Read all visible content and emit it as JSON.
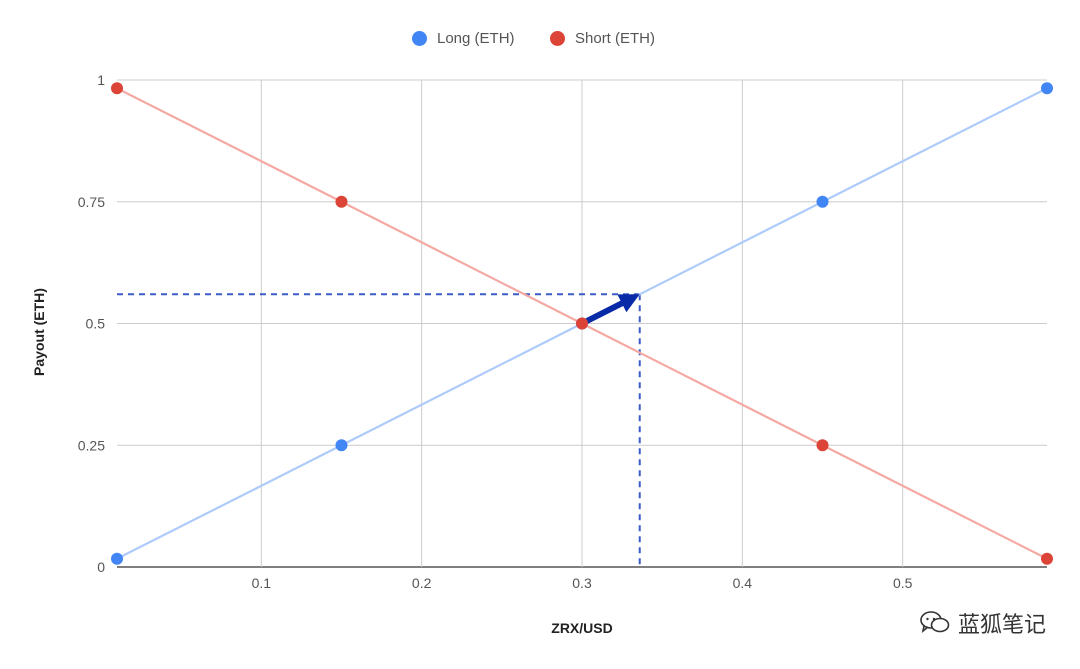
{
  "chart_data": {
    "type": "line",
    "title": "",
    "xlabel": "ZRX/USD",
    "ylabel": "Payout (ETH)",
    "xlim": [
      0.01,
      0.59
    ],
    "ylim": [
      0,
      1
    ],
    "x_ticks": [
      "0.1",
      "0.2",
      "0.3",
      "0.4",
      "0.5"
    ],
    "x_tick_values": [
      0.1,
      0.2,
      0.3,
      0.4,
      0.5
    ],
    "y_ticks": [
      "0",
      "0.25",
      "0.5",
      "0.75",
      "1"
    ],
    "y_tick_values": [
      0,
      0.25,
      0.5,
      0.75,
      1
    ],
    "grid": true,
    "legend_position": "top",
    "series": [
      {
        "name": "Long (ETH)",
        "color": "#4285f4",
        "line_color": "#aecbfa",
        "points": [
          [
            0.01,
            0.017
          ],
          [
            0.15,
            0.25
          ],
          [
            0.3,
            0.5
          ],
          [
            0.45,
            0.75
          ],
          [
            0.59,
            0.983
          ]
        ]
      },
      {
        "name": "Short (ETH)",
        "color": "#db4437",
        "line_color": "#f4a9a2",
        "points": [
          [
            0.01,
            0.983
          ],
          [
            0.15,
            0.75
          ],
          [
            0.3,
            0.5
          ],
          [
            0.45,
            0.25
          ],
          [
            0.59,
            0.017
          ]
        ]
      }
    ],
    "annotations": {
      "marker_point": [
        0.336,
        0.56
      ],
      "arrow_from": [
        0.3,
        0.5
      ],
      "arrow_to": [
        0.336,
        0.56
      ],
      "arrow_color": "#0a2ba8",
      "guide_color": "#3b5bc7"
    }
  },
  "watermark": {
    "icon": "wechat-icon",
    "text": "蓝狐笔记"
  }
}
